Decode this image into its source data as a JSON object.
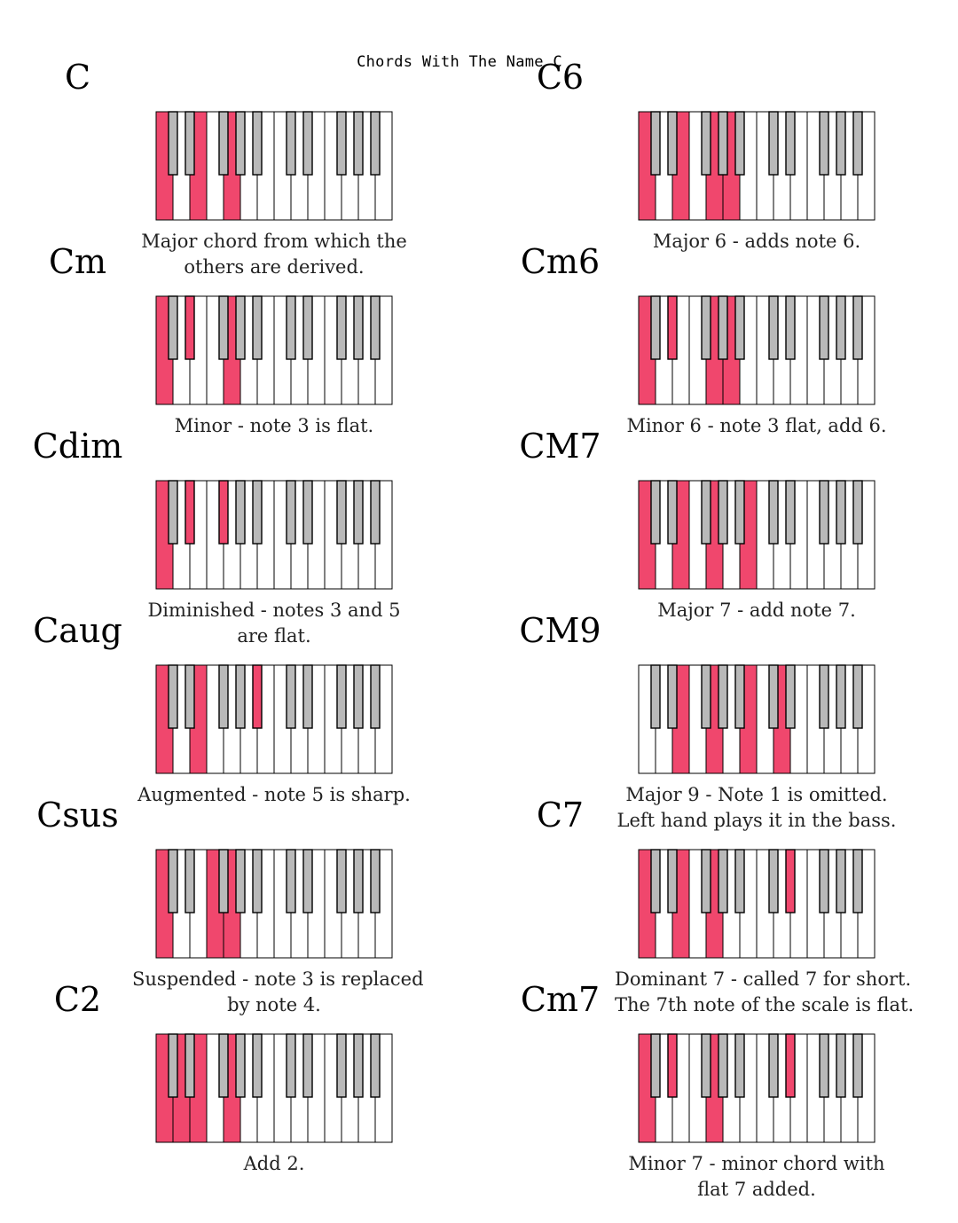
{
  "title": "Chords With The Name C",
  "colors": {
    "highlight": "#f0476d",
    "black_key": "#b9b9b9",
    "outline": "#000000",
    "white_key": "#ffffff"
  },
  "chords": [
    {
      "name": "C",
      "caption": [
        "Major chord from which the",
        "others are derived."
      ],
      "white_highlights": [
        0,
        2,
        4
      ],
      "black_highlights": []
    },
    {
      "name": "C6",
      "caption": [
        "Major 6 - adds note 6."
      ],
      "white_highlights": [
        0,
        2,
        4,
        5
      ],
      "black_highlights": []
    },
    {
      "name": "Cm",
      "caption": [
        "Minor - note 3 is flat."
      ],
      "white_highlights": [
        0,
        4
      ],
      "black_highlights": [
        1
      ]
    },
    {
      "name": "Cm6",
      "caption": [
        "Minor 6 - note 3 flat, add 6."
      ],
      "white_highlights": [
        0,
        4,
        5
      ],
      "black_highlights": [
        1
      ]
    },
    {
      "name": "Cdim",
      "caption": [
        "Diminished - notes 3 and 5",
        "are flat."
      ],
      "white_highlights": [
        0
      ],
      "black_highlights": [
        1,
        2
      ]
    },
    {
      "name": "CM7",
      "caption": [
        "Major 7 - add note 7."
      ],
      "white_highlights": [
        0,
        2,
        4,
        6
      ],
      "black_highlights": []
    },
    {
      "name": "Caug",
      "caption": [
        "Augmented - note 5 is sharp."
      ],
      "white_highlights": [
        0,
        2
      ],
      "black_highlights": [
        4
      ]
    },
    {
      "name": "CM9",
      "caption": [
        "Major 9 - Note 1 is omitted.",
        "Left hand plays it in the bass."
      ],
      "white_highlights": [
        2,
        4,
        6,
        8
      ],
      "black_highlights": []
    },
    {
      "name": "Csus",
      "caption": [
        "Suspended - note 3 is replaced",
        "by note 4."
      ],
      "white_highlights": [
        0,
        3,
        4
      ],
      "black_highlights": []
    },
    {
      "name": "C7",
      "caption": [
        "Dominant 7 - called 7 for short.",
        "The 7th note of the scale is flat."
      ],
      "white_highlights": [
        0,
        2,
        4
      ],
      "black_highlights": [
        6
      ]
    },
    {
      "name": "C2",
      "caption": [
        "Add 2."
      ],
      "white_highlights": [
        0,
        1,
        2,
        4
      ],
      "black_highlights": []
    },
    {
      "name": "Cm7",
      "caption": [
        "Minor 7 - minor chord with",
        "flat 7 added."
      ],
      "white_highlights": [
        0,
        4
      ],
      "black_highlights": [
        1,
        6
      ]
    }
  ]
}
